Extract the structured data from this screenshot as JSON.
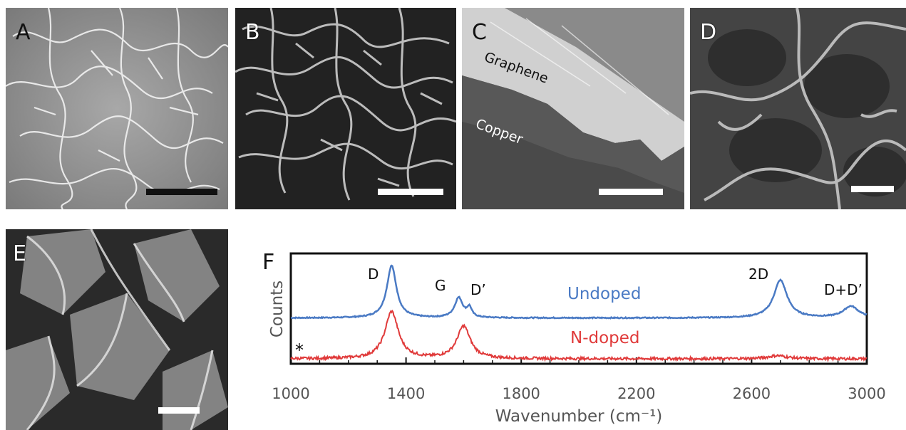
{
  "panels": [
    {
      "label": "A",
      "scalebar_color": "#111111"
    },
    {
      "label": "B",
      "scalebar_color": "#ffffff"
    },
    {
      "label": "C",
      "scalebar_color": "#ffffff",
      "layers": [
        "Graphene",
        "Copper"
      ]
    },
    {
      "label": "D",
      "scalebar_color": "#ffffff"
    },
    {
      "label": "E",
      "scalebar_color": "#ffffff"
    }
  ],
  "chart_data": {
    "panel_label": "F",
    "type": "line",
    "xlabel": "Wavenumber (cm⁻¹)",
    "ylabel": "Counts",
    "xlim": [
      1000,
      3000
    ],
    "x_ticks": [
      "1000",
      "1400",
      "1800",
      "2200",
      "2600",
      "3000"
    ],
    "y_ticks": "none",
    "grid": false,
    "series": [
      {
        "name": "Undoped",
        "color": "#4a7ac4",
        "baseline": 0.78,
        "peaks": [
          {
            "center": 1350,
            "height": 1.0,
            "width": 20
          },
          {
            "center": 1583,
            "height": 0.38,
            "width": 17
          },
          {
            "center": 1620,
            "height": 0.18,
            "width": 10
          },
          {
            "center": 2700,
            "height": 0.72,
            "width": 28
          },
          {
            "center": 2945,
            "height": 0.22,
            "width": 32
          }
        ]
      },
      {
        "name": "N-doped",
        "color": "#e03a3a",
        "baseline": 0.0,
        "peaks": [
          {
            "center": 1350,
            "height": 0.9,
            "width": 28
          },
          {
            "center": 1600,
            "height": 0.62,
            "width": 28
          },
          {
            "center": 2690,
            "height": 0.06,
            "width": 40
          }
        ]
      }
    ],
    "annotations": [
      "D",
      "G",
      "D’",
      "2D",
      "D+D’",
      "*"
    ]
  }
}
